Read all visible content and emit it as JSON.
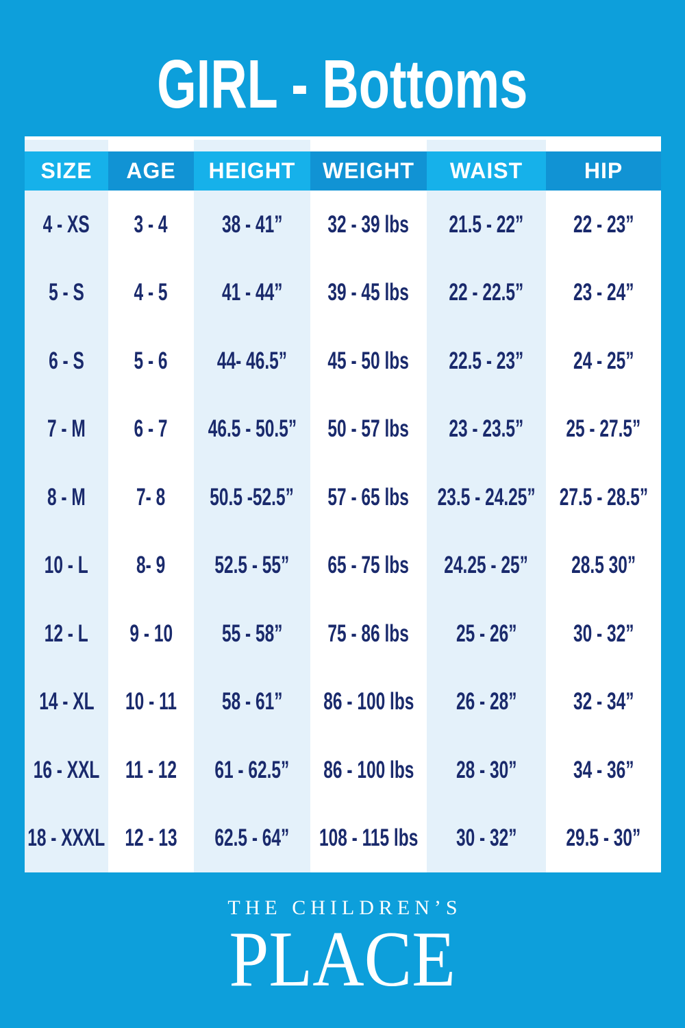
{
  "chart_data": {
    "type": "table",
    "title": "GIRL - Bottoms",
    "columns": [
      "SIZE",
      "AGE",
      "HEIGHT",
      "WEIGHT",
      "WAIST",
      "HIP"
    ],
    "rows": [
      [
        "4 - XS",
        "3 - 4",
        "38 - 41”",
        "32 - 39 lbs",
        "21.5 - 22”",
        "22 - 23”"
      ],
      [
        "5 - S",
        "4 - 5",
        "41 - 44”",
        "39 - 45 lbs",
        "22 - 22.5”",
        "23 - 24”"
      ],
      [
        "6 - S",
        "5 - 6",
        "44- 46.5”",
        "45 - 50 lbs",
        "22.5 - 23”",
        "24 - 25”"
      ],
      [
        "7 - M",
        "6 - 7",
        "46.5 - 50.5”",
        "50 - 57 lbs",
        "23 - 23.5”",
        "25 - 27.5”"
      ],
      [
        "8 - M",
        "7- 8",
        "50.5 -52.5”",
        "57 - 65 lbs",
        "23.5 - 24.25”",
        "27.5 - 28.5”"
      ],
      [
        "10 - L",
        "8- 9",
        "52.5 - 55”",
        "65 - 75 lbs",
        "24.25 - 25”",
        "28.5 30”"
      ],
      [
        "12 - L",
        "9 - 10",
        "55 - 58”",
        "75 - 86 lbs",
        "25 - 26”",
        "30 - 32”"
      ],
      [
        "14 - XL",
        "10 - 11",
        "58 - 61”",
        "86 - 100 lbs",
        "26 - 28”",
        "32 - 34”"
      ],
      [
        "16 - XXL",
        "11 - 12",
        "61 - 62.5”",
        "86 - 100 lbs",
        "28 - 30”",
        "34 - 36”"
      ],
      [
        "18 - XXXL",
        "12 - 13",
        "62.5 - 64”",
        "108 - 115 lbs",
        "30 - 32”",
        "29.5 - 30”"
      ]
    ],
    "layout": {
      "column_order": "left-to-right",
      "grid": "column-banded",
      "legend": "none"
    }
  },
  "footer": {
    "brand_line1": "THE CHILDREN’S",
    "brand_line2": "PLACE"
  },
  "colors": {
    "background": "#0d9fdb",
    "header_odd": "#16b1ea",
    "header_even": "#1193d4",
    "column_odd": "#e4f1fa",
    "column_even": "#ffffff",
    "cell_text": "#1a2a6c",
    "header_text": "#ffffff"
  }
}
